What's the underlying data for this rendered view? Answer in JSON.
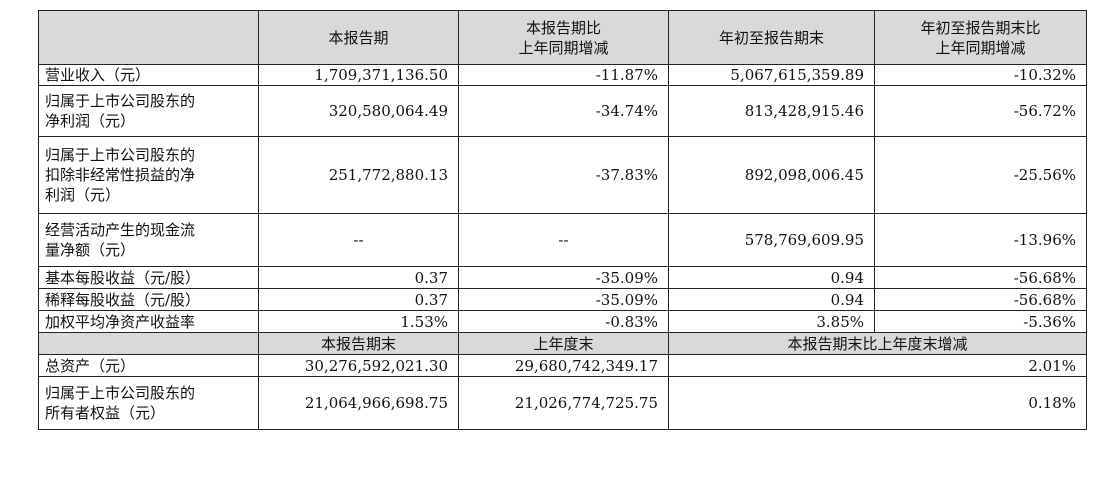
{
  "header1": {
    "c1": "本报告期",
    "c2": "本报告期比\n上年同期增减",
    "c3": "年初至报告期末",
    "c4": "年初至报告期末比\n上年同期增减"
  },
  "rows1": [
    {
      "label": "营业收入（元）",
      "v1": "1,709,371,136.50",
      "v2": "-11.87%",
      "v3": "5,067,615,359.89",
      "v4": "-10.32%"
    },
    {
      "label": "归属于上市公司股东的\n净利润（元）",
      "v1": "320,580,064.49",
      "v2": "-34.74%",
      "v3": "813,428,915.46",
      "v4": "-56.72%"
    },
    {
      "label": "归属于上市公司股东的\n扣除非经常性损益的净\n利润（元）",
      "v1": "251,772,880.13",
      "v2": "-37.83%",
      "v3": "892,098,006.45",
      "v4": "-25.56%"
    },
    {
      "label": "经营活动产生的现金流\n量净额（元）",
      "v1": "--",
      "v2": "--",
      "v3": "578,769,609.95",
      "v4": "-13.96%"
    },
    {
      "label": "基本每股收益（元/股）",
      "v1": "0.37",
      "v2": "-35.09%",
      "v3": "0.94",
      "v4": "-56.68%"
    },
    {
      "label": "稀释每股收益（元/股）",
      "v1": "0.37",
      "v2": "-35.09%",
      "v3": "0.94",
      "v4": "-56.68%"
    },
    {
      "label": "加权平均净资产收益率",
      "v1": "1.53%",
      "v2": "-0.83%",
      "v3": "3.85%",
      "v4": "-5.36%"
    }
  ],
  "header2": {
    "c1": "本报告期末",
    "c2": "上年度末",
    "c3": "本报告期末比上年度末增减"
  },
  "rows2": [
    {
      "label": "总资产（元）",
      "v1": "30,276,592,021.30",
      "v2": "29,680,742,349.17",
      "v3": "2.01%"
    },
    {
      "label": "归属于上市公司股东的\n所有者权益（元）",
      "v1": "21,064,966,698.75",
      "v2": "21,026,774,725.75",
      "v3": "0.18%"
    }
  ]
}
